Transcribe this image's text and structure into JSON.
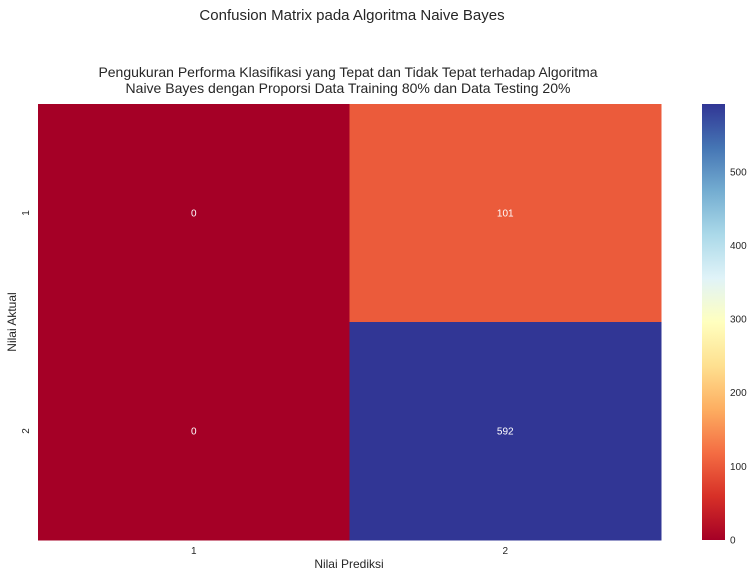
{
  "chart_data": {
    "type": "heatmap",
    "suptitle": "Confusion Matrix pada Algoritma Naive Bayes",
    "title_lines": [
      "Pengukuran Performa Klasifikasi yang Tepat dan Tidak Tepat terhadap Algoritma",
      "Naive Bayes dengan Proporsi Data Training 80% dan Data Testing 20%"
    ],
    "xlabel": "Nilai Prediksi",
    "ylabel": "Nilai Aktual",
    "x_categories": [
      "1",
      "2"
    ],
    "y_categories": [
      "1",
      "2"
    ],
    "values": [
      [
        0,
        101
      ],
      [
        0,
        592
      ]
    ],
    "colormap": "RdYlBu",
    "colorbar": {
      "range": [
        0,
        592
      ],
      "ticks": [
        0,
        100,
        200,
        300,
        400,
        500
      ],
      "tick_labels": [
        "0",
        "100",
        "200",
        "300",
        "400",
        "500"
      ]
    },
    "grid": false,
    "colors": {
      "low": "#a50026",
      "mid": "#ffffbf",
      "high": "#313695",
      "annotation_text": "#ffffff"
    }
  }
}
